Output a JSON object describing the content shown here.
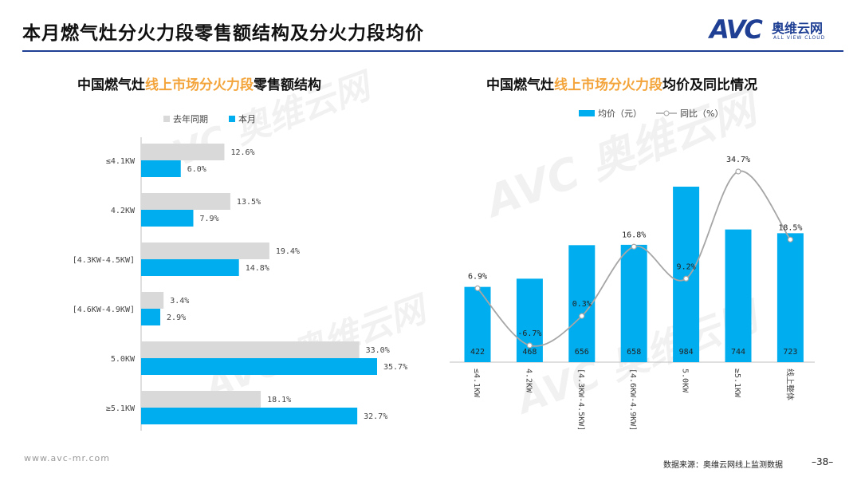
{
  "page": {
    "title": "本月燃气灶分火力段零售额结构及分火力段均价",
    "logo_text": "AVC",
    "logo_cn": "奥维云网",
    "logo_en": "ALL VIEW CLOUD",
    "watermark": "AVC 奥维云网 ALL VIEW CLOUD",
    "footer_url": "www.avc-mr.com",
    "source_note": "数据来源：奥维云网线上监测数据",
    "page_number": "–38–",
    "colors": {
      "blue": "#00aeef",
      "gray": "#d9d9d9",
      "line": "#a6a6a6",
      "brand": "#1e3f93",
      "highlight": "#f3a43b"
    }
  },
  "left_chart": {
    "title_prefix": "中国燃气灶",
    "title_highlight": "线上市场分火力段",
    "title_suffix": "零售额结构"
  },
  "right_chart": {
    "title_prefix": "中国燃气灶",
    "title_highlight": "线上市场分火力段",
    "title_suffix": "均价及同比情况"
  },
  "chart_data": [
    {
      "type": "bar",
      "orientation": "horizontal",
      "title": "中国燃气灶线上市场分火力段零售额结构",
      "categories": [
        "≤4.1KW",
        "4.2KW",
        "[4.3KW-4.5KW]",
        "[4.6KW-4.9KW]",
        "5.0KW",
        "≥5.1KW"
      ],
      "series": [
        {
          "name": "去年同期",
          "values": [
            12.6,
            13.5,
            19.4,
            3.4,
            33.0,
            18.1
          ],
          "labels": [
            "12.6%",
            "13.5%",
            "19.4%",
            "3.4%",
            "33.0%",
            "18.1%"
          ],
          "color": "#d9d9d9"
        },
        {
          "name": "本月",
          "values": [
            6.0,
            7.9,
            14.8,
            2.9,
            35.7,
            32.7
          ],
          "labels": [
            "6.0%",
            "7.9%",
            "14.8%",
            "2.9%",
            "35.7%",
            "32.7%"
          ],
          "color": "#00aeef"
        }
      ],
      "xlim": [
        0,
        40
      ],
      "unit": "%"
    },
    {
      "type": "bar+line",
      "title": "中国燃气灶线上市场分火力段均价及同比情况",
      "categories": [
        "≤4.1KW",
        "4.2KW",
        "[4.3KW-4.5KW]",
        "[4.6KW-4.9KW]",
        "5.0KW",
        "≥5.1KW",
        "线上整体"
      ],
      "bars": {
        "name": "均价（元）",
        "values": [
          422,
          468,
          656,
          658,
          984,
          744,
          723
        ],
        "labels": [
          "422",
          "468",
          "656",
          "658",
          "984",
          "744",
          "723"
        ],
        "color": "#00aeef"
      },
      "line": {
        "name": "同比（%）",
        "values": [
          6.9,
          -6.7,
          0.3,
          16.8,
          9.2,
          34.7,
          18.5
        ],
        "labels": [
          "6.9%",
          "-6.7%",
          "0.3%",
          "16.8%",
          "9.2%",
          "34.7%",
          "18.5%"
        ],
        "color": "#a6a6a6"
      },
      "bar_ylim": [
        0,
        1200
      ],
      "line_ylim": [
        -10,
        45
      ]
    }
  ]
}
